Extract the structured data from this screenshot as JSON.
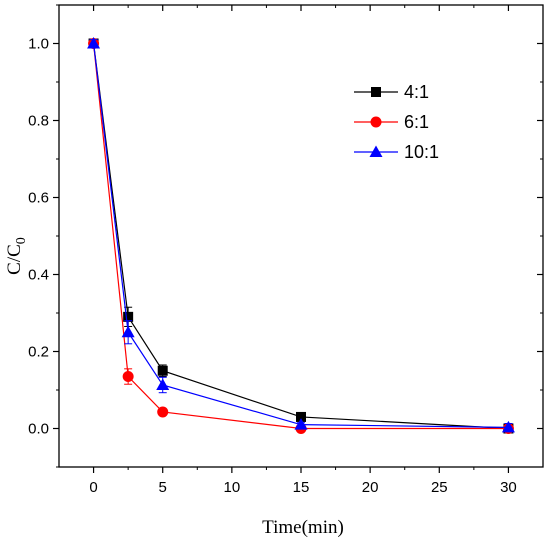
{
  "chart_data": {
    "type": "line",
    "xlabel": "Time(min)",
    "ylabel": "C/C",
    "ylabel_subscript": "0",
    "xlim": [
      -2.5,
      32.5
    ],
    "ylim": [
      -0.1,
      1.1
    ],
    "xticks": [
      0,
      5,
      10,
      15,
      20,
      25,
      30
    ],
    "yticks": [
      0.0,
      0.2,
      0.4,
      0.6,
      0.8,
      1.0
    ],
    "ytick_labels": [
      "0.0",
      "0.2",
      "0.4",
      "0.6",
      "0.8",
      "1.0"
    ],
    "grid": false,
    "legend_position": "top-right",
    "x": [
      0,
      2.5,
      5,
      15,
      30
    ],
    "series": [
      {
        "name": "4:1",
        "color": "#000000",
        "marker": "square",
        "values": [
          1.0,
          0.29,
          0.15,
          0.03,
          0.0
        ],
        "errors": [
          0.01,
          0.025,
          0.015,
          0.005,
          0.01
        ]
      },
      {
        "name": "6:1",
        "color": "#ff0000",
        "marker": "circle",
        "values": [
          1.0,
          0.135,
          0.043,
          0.0,
          0.0
        ],
        "errors": [
          0.01,
          0.02,
          0.008,
          0.004,
          0.005
        ]
      },
      {
        "name": "10:1",
        "color": "#0000ff",
        "marker": "triangle",
        "values": [
          1.0,
          0.25,
          0.113,
          0.01,
          0.003
        ],
        "errors": [
          0.01,
          0.03,
          0.02,
          0.005,
          0.01
        ]
      }
    ]
  }
}
